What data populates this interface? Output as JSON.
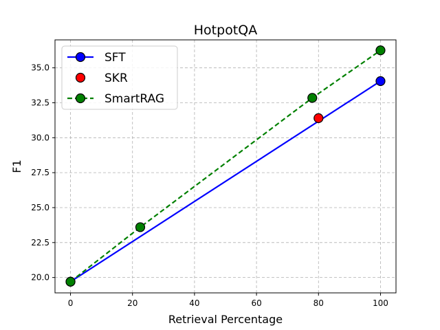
{
  "chart_data": {
    "type": "line",
    "title": "HotpotQA",
    "xlabel": "Retrieval Percentage",
    "ylabel": "F1",
    "xlim": [
      -5,
      105
    ],
    "ylim": [
      18.9,
      37.0
    ],
    "x_ticks": [
      0,
      20,
      40,
      60,
      80,
      100
    ],
    "y_ticks": [
      20.0,
      22.5,
      25.0,
      27.5,
      30.0,
      32.5,
      35.0
    ],
    "grid": true,
    "legend_position": "top-left",
    "series": [
      {
        "name": "SFT",
        "style": "solid-line-with-markers",
        "color": "#0000ff",
        "points": [
          {
            "x": 0,
            "y": 19.7
          },
          {
            "x": 100,
            "y": 34.05
          }
        ]
      },
      {
        "name": "SKR",
        "style": "markers-only",
        "color": "#ff0000",
        "points": [
          {
            "x": 80,
            "y": 31.4
          }
        ]
      },
      {
        "name": "SmartRAG",
        "style": "dashed-line-with-markers",
        "color": "#008000",
        "points": [
          {
            "x": 0,
            "y": 19.7
          },
          {
            "x": 22.5,
            "y": 23.6
          },
          {
            "x": 78,
            "y": 32.85
          },
          {
            "x": 100,
            "y": 36.25
          }
        ]
      }
    ]
  }
}
